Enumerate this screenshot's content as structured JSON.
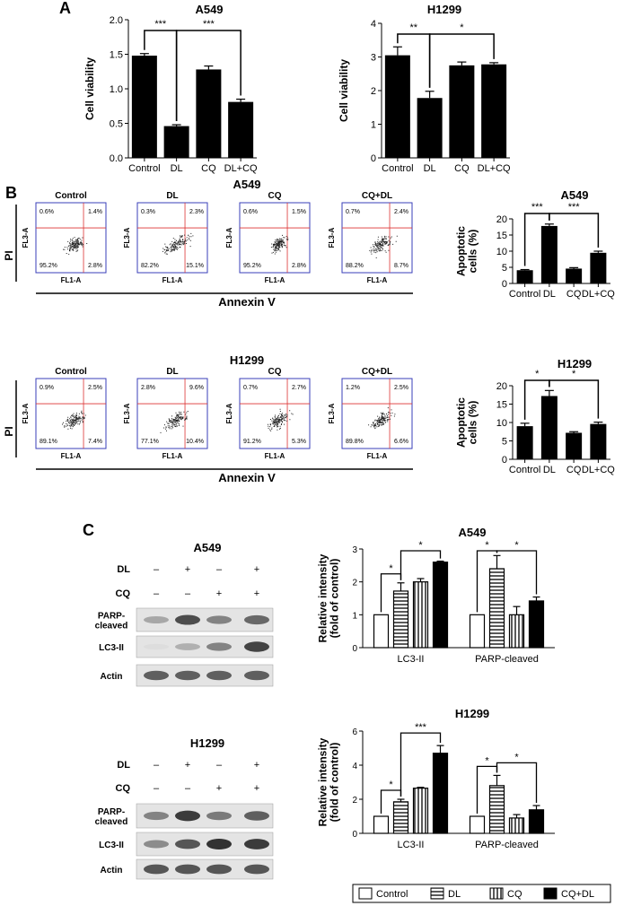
{
  "panels": {
    "A": "A",
    "B": "B",
    "C": "C"
  },
  "flow": {
    "ylabel": "PI",
    "xlabel": "Annexin V",
    "plot_xlabel": "FL1-A",
    "plot_ylabel": "FL3-A",
    "rows": [
      {
        "title": "A549",
        "plots": [
          {
            "title": "Control",
            "q": [
              "0.6%",
              "1.4%",
              "95.2%",
              "2.8%"
            ]
          },
          {
            "title": "DL",
            "q": [
              "0.3%",
              "2.3%",
              "82.2%",
              "15.1%"
            ]
          },
          {
            "title": "CQ",
            "q": [
              "0.6%",
              "1.5%",
              "95.2%",
              "2.8%"
            ]
          },
          {
            "title": "CQ+DL",
            "q": [
              "0.7%",
              "2.4%",
              "88.2%",
              "8.7%"
            ]
          }
        ]
      },
      {
        "title": "H1299",
        "plots": [
          {
            "title": "Control",
            "q": [
              "0.9%",
              "2.5%",
              "89.1%",
              "7.4%"
            ]
          },
          {
            "title": "DL",
            "q": [
              "2.8%",
              "9.6%",
              "77.1%",
              "10.4%"
            ]
          },
          {
            "title": "CQ",
            "q": [
              "0.7%",
              "2.7%",
              "91.2%",
              "5.3%"
            ]
          },
          {
            "title": "CQ+DL",
            "q": [
              "1.2%",
              "2.5%",
              "89.8%",
              "6.6%"
            ]
          }
        ]
      }
    ]
  },
  "blots": [
    {
      "title": "A549",
      "rows": [
        {
          "label": "DL",
          "signs": [
            "–",
            "+",
            "–",
            "+"
          ]
        },
        {
          "label": "CQ",
          "signs": [
            "–",
            "–",
            "+",
            "+"
          ]
        }
      ],
      "bands": [
        {
          "label": "PARP-\ncleaved",
          "intensity": [
            0.35,
            0.85,
            0.55,
            0.7
          ]
        },
        {
          "label": "LC3-II",
          "intensity": [
            0.05,
            0.3,
            0.55,
            0.9
          ]
        },
        {
          "label": "Actin",
          "intensity": [
            0.75,
            0.75,
            0.75,
            0.75
          ]
        }
      ]
    },
    {
      "title": "H1299",
      "rows": [
        {
          "label": "DL",
          "signs": [
            "–",
            "+",
            "–",
            "+"
          ]
        },
        {
          "label": "CQ",
          "signs": [
            "–",
            "–",
            "+",
            "+"
          ]
        }
      ],
      "bands": [
        {
          "label": "PARP-\ncleaved",
          "intensity": [
            0.55,
            0.95,
            0.6,
            0.75
          ]
        },
        {
          "label": "LC3-II",
          "intensity": [
            0.5,
            0.8,
            1.0,
            0.95
          ]
        },
        {
          "label": "Actin",
          "intensity": [
            0.8,
            0.8,
            0.8,
            0.8
          ]
        }
      ]
    }
  ],
  "chart_data": [
    {
      "id": "A-A549",
      "type": "bar",
      "title": "A549",
      "ylabel": "Cell viability",
      "categories": [
        "Control",
        "DL",
        "CQ",
        "DL+CQ"
      ],
      "values": [
        1.48,
        0.46,
        1.28,
        0.81
      ],
      "errors": [
        0.03,
        0.02,
        0.05,
        0.04
      ],
      "ylim": [
        0,
        2.0
      ],
      "yticks": [
        "0.0",
        "0.5",
        "1.0",
        "1.5",
        "2.0"
      ],
      "sig": [
        {
          "from": 0,
          "to": 1,
          "label": "***"
        },
        {
          "from": 1,
          "to": 3,
          "label": "***"
        }
      ]
    },
    {
      "id": "A-H1299",
      "type": "bar",
      "title": "H1299",
      "ylabel": "Cell viability",
      "categories": [
        "Control",
        "DL",
        "CQ",
        "DL+CQ"
      ],
      "values": [
        3.05,
        1.78,
        2.75,
        2.78
      ],
      "errors": [
        0.25,
        0.2,
        0.1,
        0.05
      ],
      "ylim": [
        0,
        4
      ],
      "yticks": [
        "0",
        "1",
        "2",
        "3",
        "4"
      ],
      "sig": [
        {
          "from": 0,
          "to": 1,
          "label": "**"
        },
        {
          "from": 1,
          "to": 3,
          "label": "*"
        }
      ]
    },
    {
      "id": "B-A549",
      "type": "bar",
      "title": "A549",
      "ylabel": "Apoptotic\ncells (%)",
      "categories": [
        "Control",
        "DL",
        "CQ",
        "DL+CQ"
      ],
      "values": [
        4.1,
        17.8,
        4.6,
        9.5
      ],
      "errors": [
        0.2,
        0.6,
        0.3,
        0.5
      ],
      "ylim": [
        0,
        20
      ],
      "yticks": [
        "0",
        "5",
        "10",
        "15",
        "20"
      ],
      "sig": [
        {
          "from": 0,
          "to": 1,
          "label": "***"
        },
        {
          "from": 1,
          "to": 3,
          "label": "***"
        }
      ]
    },
    {
      "id": "B-H1299",
      "type": "bar",
      "title": "H1299",
      "ylabel": "Apoptotic\ncells (%)",
      "categories": [
        "Control",
        "DL",
        "CQ",
        "DL+CQ"
      ],
      "values": [
        9.0,
        17.2,
        7.2,
        9.6
      ],
      "errors": [
        0.8,
        1.5,
        0.3,
        0.5
      ],
      "ylim": [
        0,
        20
      ],
      "yticks": [
        "0",
        "5",
        "10",
        "15",
        "20"
      ],
      "sig": [
        {
          "from": 0,
          "to": 1,
          "label": "*"
        },
        {
          "from": 1,
          "to": 3,
          "label": "*"
        }
      ]
    },
    {
      "id": "C-A549",
      "type": "bar",
      "title": "A549",
      "ylabel": "Relative intensity\n(fold of control)",
      "groups": [
        "LC3-II",
        "PARP-cleaved"
      ],
      "series": [
        {
          "name": "Control",
          "values": [
            1.0,
            1.0
          ],
          "errors": [
            0,
            0
          ]
        },
        {
          "name": "DL",
          "values": [
            1.72,
            2.4
          ],
          "errors": [
            0.25,
            0.4
          ]
        },
        {
          "name": "CQ",
          "values": [
            2.0,
            1.0
          ],
          "errors": [
            0.1,
            0.25
          ]
        },
        {
          "name": "CQ+DL",
          "values": [
            2.6,
            1.42
          ],
          "errors": [
            0.03,
            0.12
          ]
        }
      ],
      "ylim": [
        0,
        3
      ],
      "yticks": [
        "0",
        "1",
        "2",
        "3"
      ],
      "sig": [
        {
          "g": 0,
          "from": 0,
          "to": 1,
          "label": "*"
        },
        {
          "g": 0,
          "from": 1,
          "to": 3,
          "label": "*"
        },
        {
          "g": 1,
          "from": 0,
          "to": 1,
          "label": "*"
        },
        {
          "g": 1,
          "from": 1,
          "to": 3,
          "label": "*"
        }
      ]
    },
    {
      "id": "C-H1299",
      "type": "bar",
      "title": "H1299",
      "ylabel": "Relative intensity\n(fold of control)",
      "groups": [
        "LC3-II",
        "PARP-cleaved"
      ],
      "series": [
        {
          "name": "Control",
          "values": [
            1.0,
            1.0
          ],
          "errors": [
            0,
            0
          ]
        },
        {
          "name": "DL",
          "values": [
            1.85,
            2.8
          ],
          "errors": [
            0.15,
            0.6
          ]
        },
        {
          "name": "CQ",
          "values": [
            2.65,
            0.9
          ],
          "errors": [
            0.05,
            0.2
          ]
        },
        {
          "name": "CQ+DL",
          "values": [
            4.7,
            1.38
          ],
          "errors": [
            0.45,
            0.25
          ]
        }
      ],
      "ylim": [
        0,
        6
      ],
      "yticks": [
        "0",
        "2",
        "4",
        "6"
      ],
      "sig": [
        {
          "g": 0,
          "from": 0,
          "to": 1,
          "label": "*"
        },
        {
          "g": 0,
          "from": 1,
          "to": 3,
          "label": "***"
        },
        {
          "g": 1,
          "from": 0,
          "to": 1,
          "label": "*"
        },
        {
          "g": 1,
          "from": 1,
          "to": 3,
          "label": "*"
        }
      ]
    }
  ],
  "legend": {
    "items": [
      {
        "name": "Control",
        "pattern": "white"
      },
      {
        "name": "DL",
        "pattern": "hstripe"
      },
      {
        "name": "CQ",
        "pattern": "vstripe"
      },
      {
        "name": "CQ+DL",
        "pattern": "black"
      }
    ]
  }
}
